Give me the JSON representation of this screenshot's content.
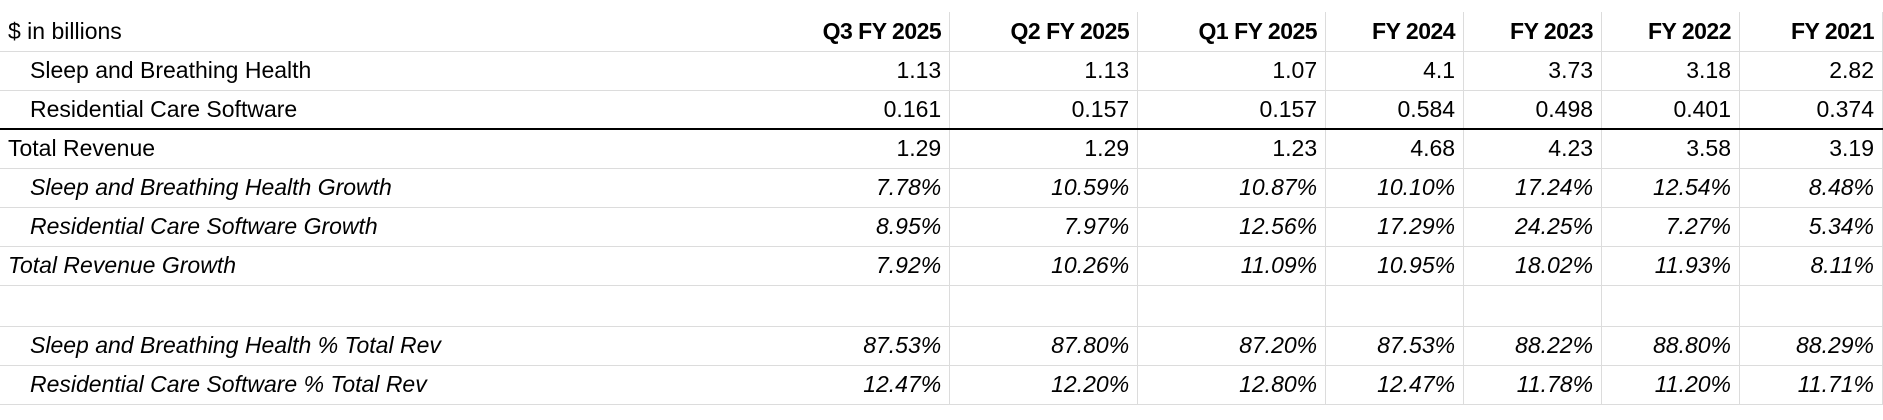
{
  "header": {
    "label": "$ in billions",
    "periods": [
      "Q3 FY 2025",
      "Q2 FY 2025",
      "Q1 FY 2025",
      "FY 2024",
      "FY 2023",
      "FY 2022",
      "FY 2021"
    ]
  },
  "rows": [
    {
      "label": "Sleep and Breathing Health",
      "values": [
        "1.13",
        "1.13",
        "1.07",
        "4.1",
        "3.73",
        "3.18",
        "2.82"
      ]
    },
    {
      "label": "Residential Care Software",
      "values": [
        "0.161",
        "0.157",
        "0.157",
        "0.584",
        "0.498",
        "0.401",
        "0.374"
      ]
    },
    {
      "label": "Total Revenue",
      "values": [
        "1.29",
        "1.29",
        "1.23",
        "4.68",
        "4.23",
        "3.58",
        "3.19"
      ]
    },
    {
      "label": "Sleep and Breathing Health Growth",
      "values": [
        "7.78%",
        "10.59%",
        "10.87%",
        "10.10%",
        "17.24%",
        "12.54%",
        "8.48%"
      ]
    },
    {
      "label": "Residential Care Software Growth",
      "values": [
        "8.95%",
        "7.97%",
        "12.56%",
        "17.29%",
        "24.25%",
        "7.27%",
        "5.34%"
      ]
    },
    {
      "label": "Total Revenue Growth",
      "values": [
        "7.92%",
        "10.26%",
        "11.09%",
        "10.95%",
        "18.02%",
        "11.93%",
        "8.11%"
      ]
    },
    {
      "label": "Sleep and Breathing Health % Total Rev",
      "values": [
        "87.53%",
        "87.80%",
        "87.20%",
        "87.53%",
        "88.22%",
        "88.80%",
        "88.29%"
      ]
    },
    {
      "label": "Residential Care Software % Total Rev",
      "values": [
        "12.47%",
        "12.20%",
        "12.80%",
        "12.47%",
        "11.78%",
        "11.20%",
        "11.71%"
      ]
    }
  ]
}
